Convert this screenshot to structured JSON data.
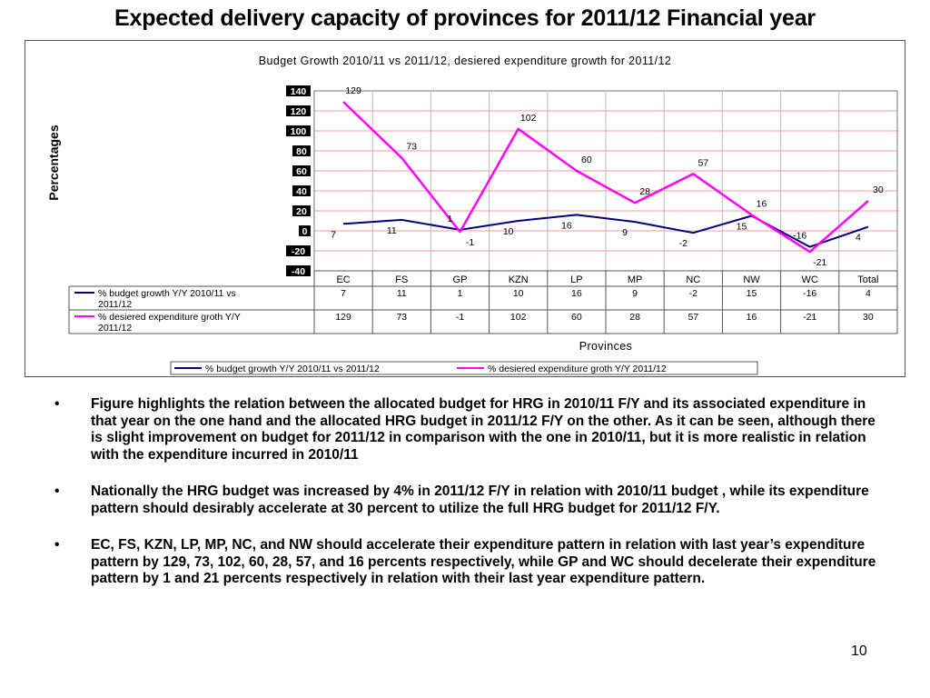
{
  "slide": {
    "title": "Expected delivery capacity of provinces for 2011/12 Financial year",
    "page_number": "10",
    "bullet_marker": "•",
    "bullets": [
      "Figure  highlights the relation between the allocated budget for HRG in 2010/11 F/Y and its associated expenditure in that year on the one hand and the allocated HRG budget in 2011/12 F/Y on the other. As it can be seen, although there is slight improvement on budget for 2011/12 in comparison with the one in 2010/11, but it is more realistic in relation with the expenditure incurred in 2010/11",
      "Nationally the HRG budget was increased by 4% in 2011/12 F/Y in relation with 2010/11 budget , while its expenditure pattern should desirably accelerate at 30 percent to utilize the full HRG budget for 2011/12 F/Y.",
      "EC, FS, KZN, LP, MP, NC, and NW should accelerate their expenditure pattern in relation with last year’s expenditure pattern by 129, 73, 102, 60, 28, 57, and 16 percents respectively, while GP and WC should decelerate their expenditure pattern by 1 and 21 percents  respectively in relation with their last year expenditure pattern."
    ]
  },
  "chart_data": {
    "type": "line",
    "title": "Budget Growth 2010/11 vs 2011/12, desiered expenditure growth for 2011/12",
    "xlabel": "Provinces",
    "ylabel": "Percentages",
    "categories": [
      "EC",
      "FS",
      "GP",
      "KZN",
      "LP",
      "MP",
      "NC",
      "NW",
      "WC",
      "Total"
    ],
    "ylim": [
      -40,
      140
    ],
    "yticks": [
      -40,
      -20,
      0,
      20,
      40,
      60,
      80,
      100,
      120,
      140
    ],
    "grid": true,
    "legend": "bottom",
    "data_table": true,
    "series": [
      {
        "name": "% budget growth Y/Y 2010/11 vs 2011/12",
        "color": "#000080",
        "values": [
          7,
          11,
          1,
          10,
          16,
          9,
          -2,
          15,
          -16,
          4
        ]
      },
      {
        "name": "% desiered expenditure groth Y/Y 2011/12",
        "color": "#ff00ff",
        "values": [
          129,
          73,
          -1,
          102,
          60,
          28,
          57,
          16,
          -21,
          30
        ]
      }
    ],
    "colors": {
      "gridline": "#ff9999",
      "frame": "#555555",
      "tick_label_bg": "#000000",
      "tick_label_fg": "#ffffff"
    }
  }
}
